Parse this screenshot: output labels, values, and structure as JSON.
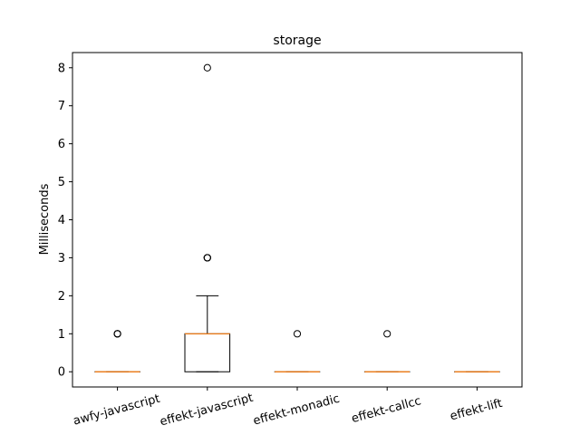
{
  "chart_data": {
    "type": "box",
    "title": "storage",
    "xlabel": "",
    "ylabel": "Milliseconds",
    "ylim": [
      -0.4,
      8.4
    ],
    "yticks": [
      0,
      1,
      2,
      3,
      4,
      5,
      6,
      7,
      8
    ],
    "grid": false,
    "colors": {
      "box": "#000000",
      "median": "#ff7f0e",
      "flier": "#000000"
    },
    "categories": [
      "awfy-javascript",
      "effekt-javascript",
      "effekt-monadic",
      "effekt-callcc",
      "effekt-lift"
    ],
    "boxes": [
      {
        "q1": 0,
        "median": 0,
        "q3": 0,
        "whisker_low": 0,
        "whisker_high": 0,
        "fliers": [
          1,
          1,
          1
        ]
      },
      {
        "q1": 0,
        "median": 1,
        "q3": 1,
        "whisker_low": 0,
        "whisker_high": 2,
        "fliers": [
          3,
          3,
          3,
          8
        ]
      },
      {
        "q1": 0,
        "median": 0,
        "q3": 0,
        "whisker_low": 0,
        "whisker_high": 0,
        "fliers": [
          1
        ]
      },
      {
        "q1": 0,
        "median": 0,
        "q3": 0,
        "whisker_low": 0,
        "whisker_high": 0,
        "fliers": [
          1
        ]
      },
      {
        "q1": 0,
        "median": 0,
        "q3": 0,
        "whisker_low": 0,
        "whisker_high": 0,
        "fliers": []
      }
    ]
  }
}
